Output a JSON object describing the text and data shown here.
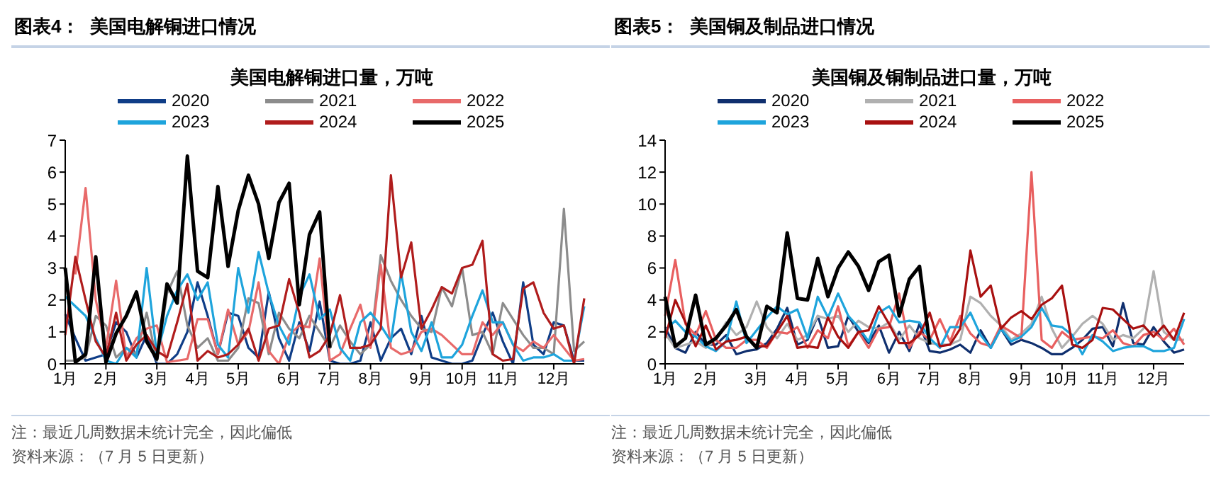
{
  "chart_data": [
    {
      "type": "line",
      "title": "图表4：  美国电解铜进口情况",
      "subtitle": "美国电解铜进口量，万吨",
      "legend": "top",
      "categories": [
        "1月",
        null,
        null,
        null,
        "2月",
        null,
        null,
        null,
        null,
        "3月",
        null,
        null,
        null,
        "4月",
        null,
        null,
        null,
        "5月",
        null,
        null,
        null,
        null,
        "6月",
        null,
        null,
        null,
        "7月",
        null,
        null,
        null,
        "8月",
        null,
        null,
        null,
        null,
        "9月",
        null,
        null,
        null,
        "10月",
        null,
        null,
        null,
        "11月",
        null,
        null,
        null,
        null,
        "12月",
        null,
        null,
        null
      ],
      "ylim": [
        0,
        7
      ],
      "yticks": [
        0,
        1,
        2,
        3,
        4,
        5,
        6,
        7
      ],
      "series": [
        {
          "name": "2020",
          "color": "#0f3d87",
          "values": [
            1.55,
            0.8,
            0.1,
            0.2,
            0.3,
            1.3,
            1.0,
            0.2,
            0.9,
            0.0,
            0.0,
            0.3,
            1.0,
            2.55,
            1.5,
            0.3,
            1.6,
            1.5,
            0.5,
            0.2,
            2.25,
            0.8,
            0.1,
            1.3,
            0.4,
            1.95,
            0.1,
            0.0,
            0.0,
            0.1,
            1.3,
            0.1,
            0.8,
            1.1,
            0.3,
            1.5,
            0.2,
            0.1,
            0.0,
            0.0,
            0.1,
            0.9,
            1.6,
            0.7,
            0.0,
            2.55,
            0.6,
            0.3,
            1.3,
            1.2,
            0.1,
            0.1
          ]
        },
        {
          "name": "2021",
          "color": "#8c8c8c",
          "values": [
            0.1,
            0.1,
            0.2,
            1.5,
            1.2,
            0.2,
            0.5,
            0.3,
            1.6,
            0.1,
            2.2,
            2.9,
            1.2,
            0.5,
            0.8,
            0.1,
            0.1,
            0.5,
            2.05,
            1.9,
            0.3,
            1.6,
            1.1,
            0.8,
            1.5,
            1.0,
            0.5,
            1.2,
            0.7,
            0.3,
            0.6,
            3.4,
            2.6,
            2.0,
            1.5,
            1.1,
            1.0,
            2.4,
            1.8,
            3.0,
            0.9,
            1.0,
            0.3,
            1.9,
            1.4,
            0.9,
            0.5,
            0.5,
            0.3,
            4.85,
            0.4,
            0.7
          ]
        },
        {
          "name": "2022",
          "color": "#e86a6a",
          "values": [
            null,
            2.8,
            5.5,
            2.0,
            0.5,
            2.6,
            0.2,
            0.8,
            1.1,
            1.2,
            0.05,
            0.1,
            0.15,
            1.4,
            1.4,
            0.3,
            1.7,
            0.6,
            1.0,
            2.55,
            0.4,
            0.0,
            0.9,
            1.2,
            1.15,
            3.3,
            0.1,
            0.3,
            1.1,
            1.85,
            0.5,
            3.1,
            0.5,
            0.3,
            0.4,
            1.0,
            1.1,
            0.9,
            0.6,
            0.3,
            0.3,
            1.3,
            0.9,
            1.3,
            0.6,
            0.4,
            0.7,
            0.5,
            0.9,
            0.5,
            0.1,
            0.15
          ]
        },
        {
          "name": "2023",
          "color": "#1ea4dc",
          "values": [
            2.1,
            1.8,
            1.5,
            0.8,
            0.1,
            0.0,
            0.5,
            0.2,
            3.0,
            0.3,
            1.5,
            2.3,
            2.8,
            2.0,
            2.55,
            0.6,
            0.2,
            3.0,
            1.6,
            3.5,
            2.2,
            1.2,
            0.6,
            2.1,
            2.8,
            1.4,
            1.7,
            0.5,
            0.1,
            1.3,
            1.6,
            1.2,
            0.7,
            2.85,
            1.0,
            0.4,
            1.3,
            0.2,
            0.2,
            0.6,
            1.5,
            2.3,
            1.3,
            1.3,
            0.6,
            0.1,
            0.2,
            0.2,
            0.3,
            0.1,
            0.1,
            1.8
          ]
        },
        {
          "name": "2024",
          "color": "#b01c1c",
          "values": [
            0.9,
            3.35,
            2.0,
            0.7,
            0.2,
            1.6,
            0.1,
            0.6,
            0.9,
            0.4,
            0.2,
            1.3,
            2.5,
            0.1,
            0.4,
            0.2,
            0.3,
            0.6,
            1.1,
            0.1,
            1.1,
            1.2,
            2.65,
            1.6,
            0.2,
            0.4,
            0.9,
            2.15,
            0.5,
            0.5,
            0.6,
            1.1,
            5.9,
            2.7,
            3.8,
            1.1,
            1.7,
            2.4,
            2.2,
            3.0,
            3.1,
            3.85,
            0.3,
            0.1,
            0.15,
            2.35,
            2.55,
            1.6,
            1.1,
            1.2,
            0.0,
            2.05
          ]
        },
        {
          "name": "2025",
          "color": "#000000",
          "values": [
            3.0,
            0.05,
            0.3,
            3.35,
            0.05,
            0.95,
            1.5,
            2.25,
            0.7,
            0.15,
            2.5,
            1.9,
            6.5,
            2.9,
            2.7,
            5.55,
            3.05,
            4.8,
            5.9,
            5.0,
            3.3,
            5.05,
            5.65,
            1.85,
            4.05,
            4.75,
            0.5,
            null,
            null,
            null,
            null,
            null,
            null,
            null,
            null,
            null,
            null,
            null,
            null,
            null,
            null,
            null,
            null,
            null,
            null,
            null,
            null,
            null,
            null,
            null,
            null,
            null
          ]
        }
      ],
      "annotations": [
        "注：最近几周数据未统计完全，因此偏低",
        "资料来源：（7 月 5 日更新）"
      ]
    },
    {
      "type": "line",
      "title": "图表5：  美国铜及制品进口情况",
      "subtitle": "美国铜及铜制品进口量，万吨",
      "legend": "top",
      "categories": [
        "1月",
        null,
        null,
        null,
        "2月",
        null,
        null,
        null,
        null,
        "3月",
        null,
        null,
        null,
        "4月",
        null,
        null,
        null,
        "5月",
        null,
        null,
        null,
        null,
        "6月",
        null,
        null,
        null,
        "7月",
        null,
        null,
        null,
        "8月",
        null,
        null,
        null,
        null,
        "9月",
        null,
        null,
        null,
        "10月",
        null,
        null,
        null,
        "11月",
        null,
        null,
        null,
        null,
        "12月",
        null,
        null,
        null
      ],
      "ylim": [
        0,
        14
      ],
      "yticks": [
        0,
        2,
        4,
        6,
        8,
        10,
        12,
        14
      ],
      "series": [
        {
          "name": "2020",
          "color": "#0f2f6e",
          "values": [
            2.3,
            1.0,
            0.7,
            2.0,
            1.2,
            1.2,
            1.8,
            0.6,
            0.8,
            0.9,
            1.3,
            2.2,
            3.5,
            1.2,
            1.5,
            3.0,
            1.0,
            1.1,
            3.0,
            2.0,
            1.3,
            2.4,
            0.7,
            2.0,
            0.8,
            2.5,
            0.8,
            0.7,
            0.9,
            1.2,
            0.7,
            2.1,
            1.0,
            2.2,
            1.2,
            1.5,
            1.3,
            1.0,
            0.6,
            0.6,
            1.0,
            1.5,
            2.2,
            2.3,
            1.1,
            3.8,
            1.3,
            1.2,
            2.3,
            1.4,
            0.7,
            0.9
          ]
        },
        {
          "name": "2021",
          "color": "#b0b0b0",
          "values": [
            1.9,
            1.0,
            1.2,
            1.4,
            1.0,
            1.5,
            2.6,
            1.8,
            2.3,
            3.9,
            2.3,
            1.6,
            2.5,
            1.5,
            1.8,
            3.0,
            2.8,
            3.0,
            2.0,
            2.7,
            2.3,
            2.2,
            2.6,
            1.5,
            2.4,
            1.6,
            1.3,
            1.2,
            1.2,
            1.5,
            4.2,
            3.8,
            3.0,
            2.4,
            1.5,
            1.9,
            2.5,
            4.2,
            2.2,
            1.0,
            1.7,
            2.5,
            3.0,
            2.5,
            1.5,
            1.8,
            1.6,
            2.2,
            5.8,
            2.0,
            1.5,
            1.5
          ]
        },
        {
          "name": "2022",
          "color": "#e85f5f",
          "values": [
            3.0,
            6.5,
            2.5,
            1.8,
            3.3,
            1.5,
            1.0,
            1.0,
            1.5,
            1.5,
            1.0,
            2.0,
            1.9,
            2.3,
            1.0,
            2.1,
            1.6,
            3.6,
            1.1,
            2.0,
            1.0,
            2.2,
            2.3,
            4.4,
            1.0,
            2.0,
            1.5,
            2.8,
            1.4,
            3.0,
            1.9,
            1.3,
            1.1,
            2.4,
            2.0,
            1.6,
            12.0,
            1.5,
            1.0,
            2.0,
            1.5,
            1.6,
            1.7,
            1.6,
            2.1,
            1.3,
            1.1,
            1.8,
            2.0,
            1.5,
            2.2,
            1.2
          ]
        },
        {
          "name": "2023",
          "color": "#1ea4dc",
          "values": [
            2.1,
            2.7,
            2.0,
            1.7,
            1.1,
            0.8,
            1.4,
            3.9,
            1.3,
            2.1,
            2.9,
            3.6,
            3.1,
            3.4,
            1.6,
            4.2,
            2.9,
            4.4,
            3.0,
            2.3,
            1.4,
            3.2,
            3.6,
            2.6,
            2.7,
            2.6,
            1.6,
            1.0,
            2.3,
            2.3,
            3.2,
            1.8,
            1.0,
            2.2,
            1.4,
            1.7,
            2.3,
            3.5,
            2.4,
            2.3,
            1.8,
            0.6,
            1.8,
            1.4,
            0.8,
            1.0,
            1.1,
            1.1,
            0.8,
            0.8,
            1.0,
            2.8
          ]
        },
        {
          "name": "2024",
          "color": "#a81010",
          "values": [
            1.6,
            4.0,
            2.6,
            1.1,
            2.4,
            0.9,
            1.4,
            1.5,
            1.7,
            1.1,
            1.1,
            2.0,
            3.0,
            1.0,
            1.1,
            1.0,
            2.9,
            1.7,
            1.0,
            2.0,
            2.1,
            3.6,
            2.5,
            1.3,
            1.3,
            1.8,
            3.2,
            1.1,
            1.2,
            2.2,
            7.1,
            4.2,
            4.9,
            2.2,
            2.9,
            3.3,
            2.8,
            3.7,
            4.1,
            4.9,
            1.2,
            1.0,
            1.5,
            3.5,
            3.4,
            2.8,
            2.2,
            2.4,
            1.7,
            2.4,
            1.5,
            3.2
          ]
        },
        {
          "name": "2025",
          "color": "#000000",
          "values": [
            4.2,
            1.1,
            1.6,
            4.3,
            1.2,
            1.6,
            2.4,
            3.4,
            1.7,
            1.0,
            3.6,
            3.2,
            8.2,
            4.1,
            4.0,
            6.6,
            4.2,
            6.0,
            7.0,
            6.1,
            4.6,
            6.4,
            6.8,
            3.0,
            5.3,
            6.1,
            1.2,
            null,
            null,
            null,
            null,
            null,
            null,
            null,
            null,
            null,
            null,
            null,
            null,
            null,
            null,
            null,
            null,
            null,
            null,
            null,
            null,
            null,
            null,
            null,
            null,
            null
          ]
        }
      ],
      "annotations": [
        "注：最近几周数据未统计完全，因此偏低",
        "资料来源：（7 月 5 日更新）"
      ]
    }
  ]
}
